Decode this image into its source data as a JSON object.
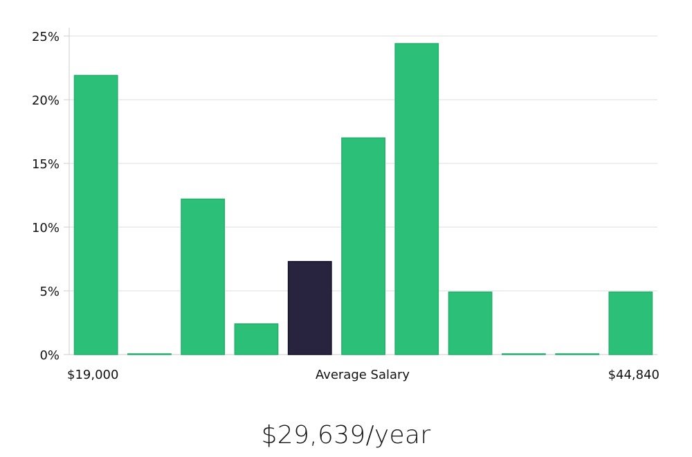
{
  "chart_data": {
    "type": "bar",
    "values": [
      21.9,
      0,
      12.2,
      2.4,
      7.3,
      17.0,
      24.4,
      4.9,
      0,
      0,
      4.9
    ],
    "highlight_index": 4,
    "ylim": [
      0,
      25
    ],
    "yticks": [
      "0%",
      "5%",
      "10%",
      "15%",
      "20%",
      "25%"
    ],
    "ytick_values": [
      0,
      5,
      10,
      15,
      20,
      25
    ],
    "x_left_label": "$19,000",
    "x_center_label": "Average Salary",
    "x_right_label": "$44,840",
    "grid": true,
    "colors": {
      "bar": "#2bbf77",
      "highlight": "#28233f",
      "grid": "#dddddd",
      "axis": "#cccccc"
    }
  },
  "salary_display": "$29,639/year"
}
